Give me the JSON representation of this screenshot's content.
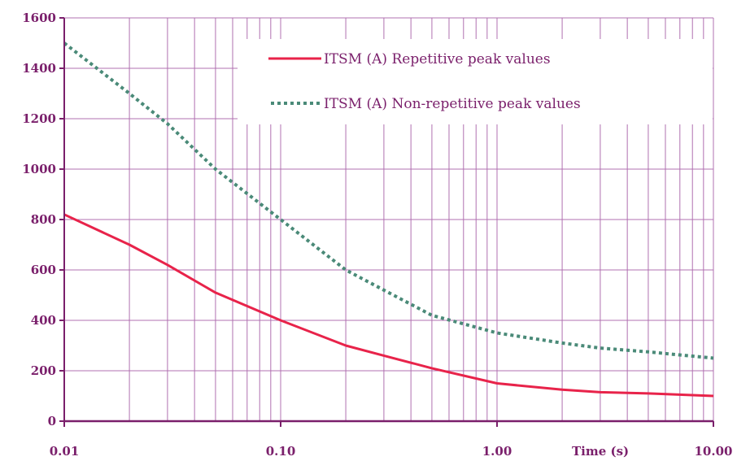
{
  "chart_data": {
    "type": "line",
    "title": "",
    "xlabel": "Time (s)",
    "ylabel": "",
    "x_scale": "log",
    "xlim": [
      0.01,
      10
    ],
    "ylim": [
      0,
      1600
    ],
    "x_tick_labels": [
      "0.01",
      "0.10",
      "1.00",
      "10.00"
    ],
    "x_tick_values": [
      0.01,
      0.1,
      1,
      10
    ],
    "y_tick_labels": [
      "0",
      "200",
      "400",
      "600",
      "800",
      "1000",
      "1200",
      "1400",
      "1600"
    ],
    "y_tick_values": [
      0,
      200,
      400,
      600,
      800,
      1000,
      1200,
      1400,
      1600
    ],
    "grid": true,
    "legend_position": "top-right",
    "series": [
      {
        "name": "ITSM (A) Repetitive peak values",
        "style": "solid",
        "color": "#e8234a",
        "x": [
          0.01,
          0.02,
          0.03,
          0.05,
          0.1,
          0.2,
          0.3,
          0.5,
          1,
          2,
          3,
          5,
          10
        ],
        "y": [
          820,
          700,
          620,
          510,
          400,
          300,
          260,
          210,
          150,
          125,
          115,
          110,
          100
        ]
      },
      {
        "name": "ITSM (A) Non-repetitive peak values",
        "style": "dotted",
        "color": "#4a8a78",
        "x": [
          0.01,
          0.02,
          0.03,
          0.05,
          0.1,
          0.2,
          0.3,
          0.5,
          1,
          2,
          3,
          5,
          10
        ],
        "y": [
          1500,
          1300,
          1180,
          1000,
          800,
          600,
          520,
          420,
          350,
          310,
          290,
          275,
          250
        ]
      }
    ]
  },
  "colors": {
    "axis": "#7a1f6b",
    "grid": "#b070b0"
  }
}
